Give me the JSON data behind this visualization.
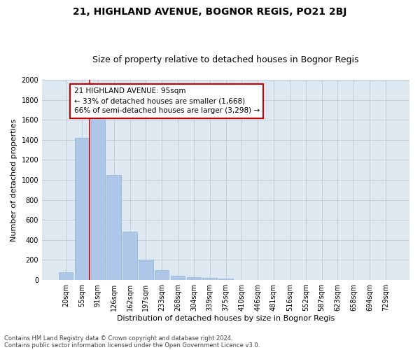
{
  "title": "21, HIGHLAND AVENUE, BOGNOR REGIS, PO21 2BJ",
  "subtitle": "Size of property relative to detached houses in Bognor Regis",
  "xlabel": "Distribution of detached houses by size in Bognor Regis",
  "ylabel": "Number of detached properties",
  "footnote1": "Contains HM Land Registry data © Crown copyright and database right 2024.",
  "footnote2": "Contains public sector information licensed under the Open Government Licence v3.0.",
  "categories": [
    "20sqm",
    "55sqm",
    "91sqm",
    "126sqm",
    "162sqm",
    "197sqm",
    "233sqm",
    "268sqm",
    "304sqm",
    "339sqm",
    "375sqm",
    "410sqm",
    "446sqm",
    "481sqm",
    "516sqm",
    "552sqm",
    "587sqm",
    "623sqm",
    "658sqm",
    "694sqm",
    "729sqm"
  ],
  "values": [
    80,
    1420,
    1620,
    1050,
    480,
    205,
    100,
    42,
    30,
    22,
    14,
    0,
    0,
    0,
    0,
    0,
    0,
    0,
    0,
    0,
    0
  ],
  "bar_color": "#aec6e8",
  "bar_edge_color": "#8ab4d8",
  "highlight_index": 2,
  "highlight_line_color": "#cc0000",
  "annotation_box_color": "#cc0000",
  "annotation_text": "21 HIGHLAND AVENUE: 95sqm\n← 33% of detached houses are smaller (1,668)\n66% of semi-detached houses are larger (3,298) →",
  "ylim": [
    0,
    2000
  ],
  "yticks": [
    0,
    200,
    400,
    600,
    800,
    1000,
    1200,
    1400,
    1600,
    1800,
    2000
  ],
  "background_color": "#ffffff",
  "plot_bg_color": "#dde8f0",
  "grid_color": "#c0c8d0",
  "title_fontsize": 10,
  "subtitle_fontsize": 9,
  "axis_label_fontsize": 8,
  "tick_fontsize": 7,
  "annotation_fontsize": 7.5,
  "footnote_fontsize": 6
}
